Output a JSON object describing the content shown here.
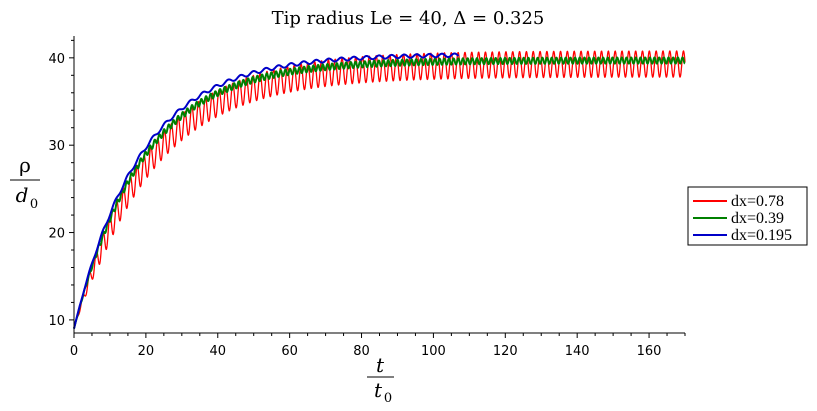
{
  "chart_data": {
    "type": "line",
    "title": "Tip radius Le = 40, Δ = 0.325",
    "xlabel": {
      "numerator": "t",
      "denominator": "t",
      "denominator_sub": "0"
    },
    "ylabel": {
      "numerator": "ρ",
      "denominator": "d",
      "denominator_sub": "0"
    },
    "xlim": [
      0,
      170
    ],
    "ylim": [
      8.5,
      42.5
    ],
    "xticks": [
      0,
      20,
      40,
      60,
      80,
      100,
      120,
      140,
      160
    ],
    "yticks": [
      10,
      20,
      30,
      40
    ],
    "grid": false,
    "legend_position": "right",
    "series": [
      {
        "name": "dx=0.78",
        "color": "#ff0000",
        "x_start": 0,
        "x_end": 170,
        "y0": 9.0,
        "y_final": 39.3,
        "tau": 21,
        "oscillation_amplitude": 1.5,
        "oscillation_period": 1.9
      },
      {
        "name": "dx=0.39",
        "color": "#008000",
        "x_start": 0,
        "x_end": 170,
        "y0": 9.0,
        "y_final": 39.7,
        "tau": 19,
        "oscillation_amplitude": 0.35,
        "oscillation_period": 1.3
      },
      {
        "name": "dx=0.195",
        "color": "#0000c8",
        "x_start": 0,
        "x_end": 107,
        "y0": 9.0,
        "y_final": 40.4,
        "tau": 18.5,
        "oscillation_amplitude": 0.2,
        "oscillation_period": 3.5
      }
    ]
  }
}
